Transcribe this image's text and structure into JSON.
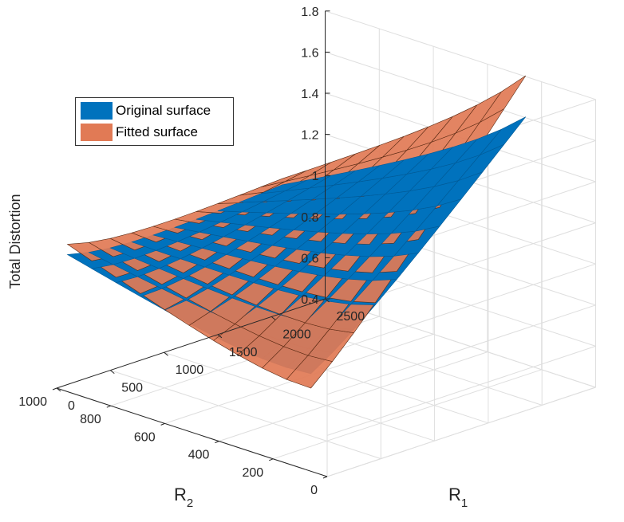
{
  "chart_data": {
    "type": "surface3d",
    "xlabel": "R",
    "xlabel_sub": "1",
    "ylabel": "R",
    "ylabel_sub": "2",
    "zlabel": "Total Distortion",
    "x_ticks": [
      "0",
      "500",
      "1000",
      "1500",
      "2000",
      "2500"
    ],
    "y_ticks": [
      "0",
      "200",
      "400",
      "600",
      "800",
      "1000"
    ],
    "z_ticks": [
      "0.4",
      "0.6",
      "0.8",
      "1",
      "1.2",
      "1.4",
      "1.6",
      "1.8"
    ],
    "xlim": [
      0,
      2500
    ],
    "ylim": [
      0,
      1000
    ],
    "zlim": [
      0.4,
      1.8
    ],
    "grid": true,
    "legend_location": "top-left",
    "x": [
      100,
      300,
      500,
      700,
      900,
      1100,
      1300,
      1500,
      1700,
      1900,
      2100
    ],
    "y": [
      100,
      190,
      280,
      370,
      460,
      550,
      640,
      730,
      820,
      910,
      1000
    ],
    "series": [
      {
        "name": "Original surface",
        "color": "#0072bd",
        "z_corners": {
          "R1_min_R2_min": 0.62,
          "R1_min_R2_max": 0.93,
          "R1_max_R2_min": 1.62,
          "R1_max_R2_max": 1.02
        }
      },
      {
        "name": "Fitted surface",
        "color": "#d95319",
        "face_color": "#e17a55",
        "z_corners": {
          "R1_min_R2_min": 0.55,
          "R1_min_R2_max": 0.98,
          "R1_max_R2_min": 1.82,
          "R1_max_R2_max": 1.05
        }
      }
    ]
  }
}
